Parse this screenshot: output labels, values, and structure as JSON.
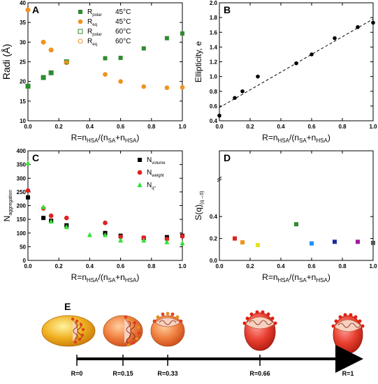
{
  "chart_data": [
    {
      "panel": "A",
      "type": "scatter",
      "ylabel": "Radi (Å)",
      "xlabel_parts": [
        "R=n",
        "HSA",
        "/(n",
        "SA",
        "+n",
        "HSA",
        ")"
      ],
      "xlim": [
        0,
        1
      ],
      "ylim": [
        10,
        40
      ],
      "xticks": [
        "0.0",
        "0.2",
        "0.4",
        "0.6",
        "0.8",
        "1.0"
      ],
      "yticks": [
        "10",
        "15",
        "20",
        "25",
        "30",
        "35",
        "40"
      ],
      "legend_position": "top-right",
      "series": [
        {
          "name": "R",
          "sub": "polar",
          "temp": "45°C",
          "marker": "square-filled",
          "color": "#2e8b2e",
          "x": [
            0.0,
            0.1,
            0.15,
            0.25,
            0.5,
            0.6,
            0.75,
            0.9,
            1.0
          ],
          "y": [
            18.8,
            21.0,
            22.2,
            25.0,
            25.9,
            26.0,
            28.4,
            31.0,
            32.2
          ]
        },
        {
          "name": "R",
          "sub": "eq",
          "temp": "45°C",
          "marker": "circle-filled",
          "color": "#f0921e",
          "x": [
            0.0,
            0.1,
            0.15,
            0.25,
            0.5,
            0.6,
            0.75,
            0.9,
            1.0
          ],
          "y": [
            38.2,
            30.0,
            28.0,
            24.8,
            21.8,
            20.0,
            18.7,
            18.4,
            18.5
          ]
        },
        {
          "name": "R",
          "sub": "polar",
          "temp": "60°C",
          "marker": "square-open",
          "color": "#2e8b2e",
          "x": [
            0.0,
            0.1,
            0.15,
            0.25
          ],
          "y": [
            18.8,
            21.0,
            22.2,
            25.0
          ]
        },
        {
          "name": "R",
          "sub": "eq",
          "temp": "60°C",
          "marker": "circle-open",
          "color": "#f0921e",
          "x": [
            0.0,
            0.1,
            0.15,
            0.25
          ],
          "y": [
            38.2,
            30.0,
            28.0,
            24.8
          ]
        }
      ]
    },
    {
      "panel": "B",
      "type": "scatter",
      "ylabel": "Ellipticity, e",
      "xlabel_parts": [
        "R=n",
        "HSA",
        "/(n",
        "SA",
        "+n",
        "HSA",
        ")"
      ],
      "xlim": [
        0,
        1
      ],
      "ylim": [
        0.4,
        2.0
      ],
      "xticks": [
        "0.0",
        "0.2",
        "0.4",
        "0.6",
        "0.8",
        "1.0"
      ],
      "yticks": [
        "0.4",
        "0.6",
        "0.8",
        "1.0",
        "1.2",
        "1.4",
        "1.6",
        "1.8",
        "2.0"
      ],
      "fit_line": {
        "x": [
          0,
          1
        ],
        "y": [
          0.58,
          1.78
        ],
        "style": "dashed"
      },
      "series": [
        {
          "marker": "circle-filled",
          "color": "#000000",
          "x": [
            0.0,
            0.1,
            0.15,
            0.25,
            0.5,
            0.6,
            0.75,
            0.9,
            1.0
          ],
          "y": [
            0.47,
            0.71,
            0.8,
            1.0,
            1.18,
            1.3,
            1.52,
            1.67,
            1.73
          ]
        }
      ]
    },
    {
      "panel": "C",
      "type": "scatter",
      "ylabel": "N",
      "ylabel_sub": "aggregation",
      "xlabel_parts": [
        "R=n",
        "HSA",
        "/(n",
        "SA",
        "+n",
        "HSA",
        ")"
      ],
      "xlim": [
        0,
        1
      ],
      "ylim": [
        0,
        400
      ],
      "xticks": [
        "0.0",
        "0.2",
        "0.4",
        "0.6",
        "0.8",
        "1.0"
      ],
      "yticks": [
        "0",
        "50",
        "100",
        "150",
        "200",
        "250",
        "300",
        "350",
        "400"
      ],
      "legend_position": "top-right",
      "series": [
        {
          "name": "N",
          "sub": "volume",
          "marker": "square-filled",
          "color": "#000000",
          "x": [
            0.0,
            0.1,
            0.15,
            0.25,
            0.5,
            0.6,
            0.75,
            0.9,
            1.0
          ],
          "y": [
            230,
            155,
            145,
            128,
            100,
            90,
            82,
            85,
            90
          ]
        },
        {
          "name": "N",
          "sub": "weight",
          "marker": "circle-filled",
          "color": "#e02020",
          "x": [
            0.0,
            0.1,
            0.15,
            0.25,
            0.5,
            0.6,
            0.75,
            0.9,
            1.0
          ],
          "y": [
            255,
            190,
            163,
            155,
            137,
            86,
            83,
            78,
            88
          ]
        },
        {
          "name": "N",
          "sub": "q°",
          "marker": "triangle-filled",
          "color": "#33e033",
          "x": [
            0.0,
            0.1,
            0.15,
            0.25,
            0.4,
            0.5,
            0.6,
            0.75,
            0.9,
            1.0
          ],
          "y": [
            355,
            195,
            142,
            122,
            93,
            93,
            73,
            73,
            67,
            63
          ]
        }
      ]
    },
    {
      "panel": "D",
      "type": "scatter",
      "ylabel": "S(q)",
      "ylabel_sub": "(q→0)",
      "xlabel_parts": [
        "R=n",
        "HSA",
        "/(n",
        "SA",
        "+n",
        "HSA",
        ")"
      ],
      "xlim": [
        0,
        1
      ],
      "ylim": [
        0,
        1.0
      ],
      "axis_break": true,
      "xticks": [
        "0.0",
        "0.2",
        "0.4",
        "0.6",
        "0.8",
        "1.0"
      ],
      "yticks": [
        "0.0",
        "0.2",
        "0.4"
      ],
      "series": [
        {
          "marker": "square-filled",
          "x": [
            0.1,
            0.15,
            0.25,
            0.5,
            0.6,
            0.75,
            0.9,
            1.0
          ],
          "y": [
            0.2,
            0.165,
            0.14,
            0.33,
            0.155,
            0.17,
            0.17,
            0.16
          ],
          "colors": [
            "#e02020",
            "#f0921e",
            "#e8e020",
            "#2e8b2e",
            "#1e90ff",
            "#1a2a9c",
            "#9c1a9c",
            "#555555"
          ]
        }
      ]
    }
  ],
  "panel_e": {
    "label": "E",
    "axis_labels": [
      "R=0",
      "R=0.15",
      "R=0.33",
      "R=0.66",
      "R=1"
    ]
  }
}
